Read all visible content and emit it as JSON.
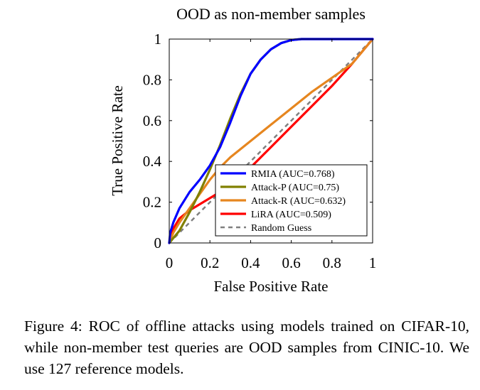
{
  "chart_data": {
    "type": "line",
    "title": "OOD as non-member samples",
    "xlabel": "False Positive Rate",
    "ylabel": "True Positive Rate",
    "xlim": [
      0,
      1
    ],
    "ylim": [
      0,
      1
    ],
    "x_ticks": [
      "0",
      "0.2",
      "0.4",
      "0.6",
      "0.8",
      "1"
    ],
    "y_ticks": [
      "0",
      "0.2",
      "0.4",
      "0.6",
      "0.8",
      "1"
    ],
    "grid": false,
    "legend_position": "lower-right",
    "series": [
      {
        "name": "RMIA (AUC=0.768)",
        "color": "#0000ff",
        "style": "solid",
        "points": [
          [
            0,
            0
          ],
          [
            0.005,
            0.05
          ],
          [
            0.02,
            0.1
          ],
          [
            0.05,
            0.17
          ],
          [
            0.1,
            0.25
          ],
          [
            0.15,
            0.31
          ],
          [
            0.2,
            0.38
          ],
          [
            0.25,
            0.47
          ],
          [
            0.3,
            0.59
          ],
          [
            0.35,
            0.72
          ],
          [
            0.4,
            0.83
          ],
          [
            0.45,
            0.9
          ],
          [
            0.5,
            0.95
          ],
          [
            0.55,
            0.98
          ],
          [
            0.6,
            0.995
          ],
          [
            0.65,
            1.0
          ],
          [
            0.8,
            1.0
          ],
          [
            1.0,
            1.0
          ]
        ]
      },
      {
        "name": "Attack-P (AUC=0.75)",
        "color": "#808000",
        "style": "solid",
        "points": [
          [
            0,
            0
          ],
          [
            0.05,
            0.06
          ],
          [
            0.1,
            0.15
          ],
          [
            0.15,
            0.25
          ],
          [
            0.2,
            0.36
          ],
          [
            0.25,
            0.48
          ],
          [
            0.3,
            0.61
          ],
          [
            0.35,
            0.73
          ],
          [
            0.4,
            0.83
          ],
          [
            0.45,
            0.9
          ],
          [
            0.5,
            0.95
          ],
          [
            0.55,
            0.98
          ],
          [
            0.6,
            0.995
          ],
          [
            0.65,
            1.0
          ],
          [
            1.0,
            1.0
          ]
        ]
      },
      {
        "name": "Attack-R (AUC=0.632)",
        "color": "#e6861f",
        "style": "solid",
        "points": [
          [
            0,
            0
          ],
          [
            0.02,
            0.05
          ],
          [
            0.05,
            0.1
          ],
          [
            0.1,
            0.17
          ],
          [
            0.15,
            0.24
          ],
          [
            0.2,
            0.31
          ],
          [
            0.25,
            0.37
          ],
          [
            0.3,
            0.42
          ],
          [
            0.4,
            0.5
          ],
          [
            0.5,
            0.58
          ],
          [
            0.6,
            0.66
          ],
          [
            0.7,
            0.74
          ],
          [
            0.8,
            0.81
          ],
          [
            0.9,
            0.88
          ],
          [
            1.0,
            1.0
          ]
        ]
      },
      {
        "name": "LiRA (AUC=0.509)",
        "color": "#ff0000",
        "style": "solid",
        "points": [
          [
            0,
            0
          ],
          [
            0.02,
            0.07
          ],
          [
            0.05,
            0.12
          ],
          [
            0.1,
            0.16
          ],
          [
            0.2,
            0.22
          ],
          [
            0.3,
            0.28
          ],
          [
            0.4,
            0.37
          ],
          [
            0.5,
            0.47
          ],
          [
            0.6,
            0.57
          ],
          [
            0.7,
            0.67
          ],
          [
            0.8,
            0.77
          ],
          [
            0.9,
            0.88
          ],
          [
            1.0,
            1.0
          ]
        ]
      },
      {
        "name": "Random Guess",
        "color": "#808080",
        "style": "dashed",
        "points": [
          [
            0,
            0
          ],
          [
            1,
            1
          ]
        ]
      }
    ]
  },
  "caption": "Figure 4: ROC of offline attacks using models trained on CIFAR-10, while non-member test queries are OOD samples from CINIC-10. We use 127 reference models."
}
